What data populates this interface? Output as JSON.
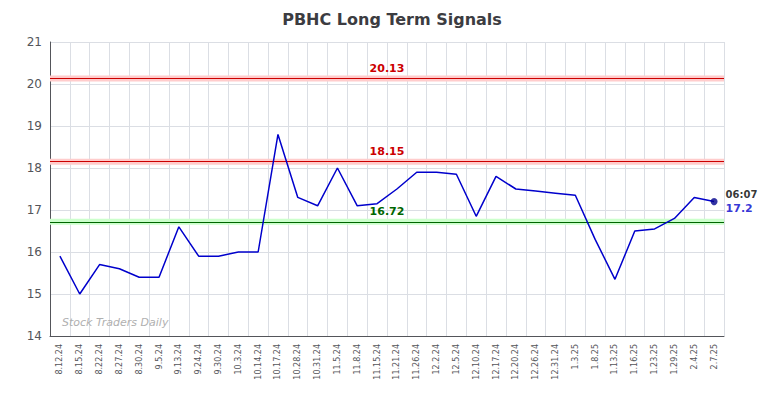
{
  "chart_data": {
    "type": "line",
    "title": "PBHC Long Term Signals",
    "categories": [
      "8.12.24",
      "8.15.24",
      "8.22.24",
      "8.27.24",
      "8.30.24",
      "9.5.24",
      "9.13.24",
      "9.24.24",
      "9.30.24",
      "10.3.24",
      "10.14.24",
      "10.17.24",
      "10.28.24",
      "10.31.24",
      "11.5.24",
      "11.8.24",
      "11.15.24",
      "11.21.24",
      "11.26.24",
      "12.2.24",
      "12.5.24",
      "12.10.24",
      "12.17.24",
      "12.20.24",
      "12.26.24",
      "12.31.24",
      "1.3.25",
      "1.8.25",
      "1.13.25",
      "1.16.25",
      "1.23.25",
      "1.29.25",
      "2.4.25",
      "2.7.25"
    ],
    "values": [
      15.9,
      15.0,
      15.7,
      15.6,
      15.4,
      15.4,
      16.6,
      15.9,
      15.9,
      16.0,
      16.0,
      18.8,
      17.3,
      17.1,
      18.0,
      17.1,
      17.15,
      17.5,
      17.9,
      17.9,
      17.85,
      16.85,
      17.8,
      17.5,
      17.45,
      17.4,
      17.35,
      16.3,
      15.35,
      16.5,
      16.55,
      16.8,
      17.3,
      17.2
    ],
    "color": "#0000cc",
    "reference_lines": [
      {
        "value": 20.13,
        "label": "20.13",
        "color": "#cc0000",
        "fill": "#ffcccc"
      },
      {
        "value": 18.15,
        "label": "18.15",
        "color": "#cc0000",
        "fill": "#ffcccc"
      },
      {
        "value": 16.72,
        "label": "16.72",
        "color": "#006600",
        "fill": "#ccffcc"
      }
    ],
    "last_point": {
      "color": "#00008B",
      "annotations": [
        "06:07",
        "17.2"
      ]
    },
    "watermark": {
      "text": "Stock Traders Daily",
      "color": "#b0b0b0"
    },
    "ylim": [
      14,
      21
    ],
    "yticks": [
      14,
      15,
      16,
      17,
      18,
      19,
      20,
      21
    ],
    "grid": true
  }
}
